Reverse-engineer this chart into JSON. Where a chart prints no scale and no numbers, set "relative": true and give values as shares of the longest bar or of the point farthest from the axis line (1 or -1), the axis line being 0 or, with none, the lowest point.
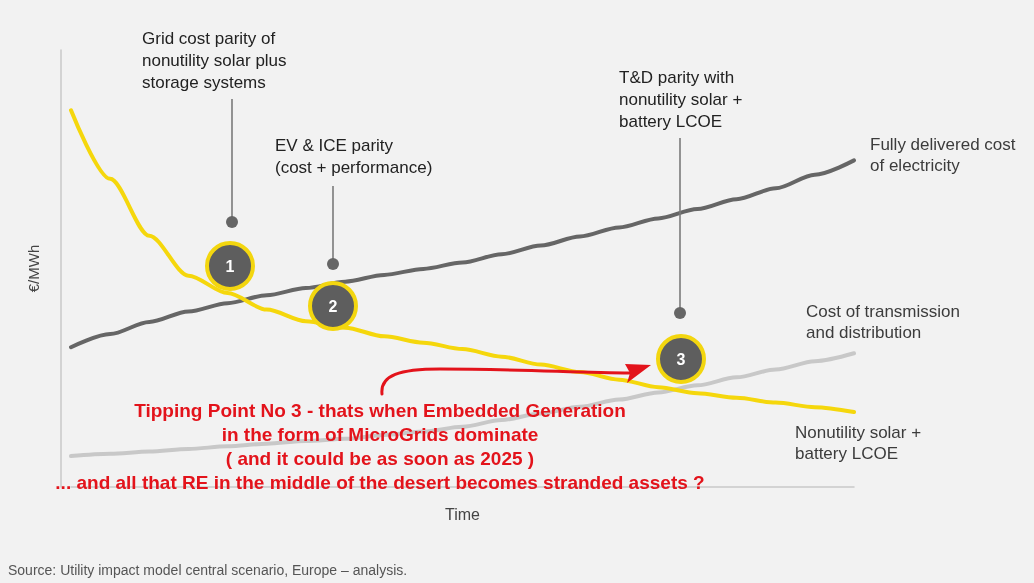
{
  "chart_data": {
    "type": "line",
    "relative": true,
    "xlabel": "Time",
    "ylabel": "€/MWh",
    "marker": "none",
    "line_style": "solid",
    "categories": [
      null,
      null,
      null,
      null,
      null,
      null,
      null,
      null,
      null,
      null,
      null,
      null,
      null,
      null,
      null,
      null,
      null,
      null,
      null,
      null,
      null
    ],
    "series": [
      {
        "name": "Fully delivered cost of electricity",
        "color": "#666666",
        "values": [
          0.371,
          0.406,
          0.438,
          0.466,
          0.488,
          0.509,
          0.528,
          0.545,
          0.563,
          0.579,
          0.596,
          0.618,
          0.641,
          0.665,
          0.689,
          0.713,
          0.738,
          0.764,
          0.793,
          0.829,
          0.867
        ]
      },
      {
        "name": "Cost of transmission and distribution",
        "color": "#c8c8c8",
        "values": [
          0.082,
          0.088,
          0.094,
          0.101,
          0.108,
          0.115,
          0.122,
          0.128,
          0.138,
          0.147,
          0.16,
          0.178,
          0.195,
          0.213,
          0.232,
          0.251,
          0.27,
          0.291,
          0.312,
          0.334,
          0.355
        ]
      },
      {
        "name": "Nonutility solar + battery LCOE",
        "color": "#f5d70c",
        "values": [
          1,
          0.818,
          0.667,
          0.561,
          0.515,
          0.471,
          0.44,
          0.423,
          0.4,
          0.383,
          0.366,
          0.346,
          0.325,
          0.305,
          0.285,
          0.265,
          0.249,
          0.237,
          0.224,
          0.212,
          0.199
        ]
      }
    ],
    "annotations": [
      "Grid cost parity of nonutility solar plus storage systems",
      "EV & ICE parity (cost + performance)",
      "T&D parity with nonutility solar + battery LCOE",
      "1",
      "2",
      "3",
      "Tipping Point No 3 - thats when Embedded Generation in the form of MicroGrids dominate ( and it could be as soon as 2025 ) ... and all that RE in the middle of the desert becomes stranded assets ?",
      "Source: Utility impact model central scenario, Europe – analysis."
    ]
  }
}
